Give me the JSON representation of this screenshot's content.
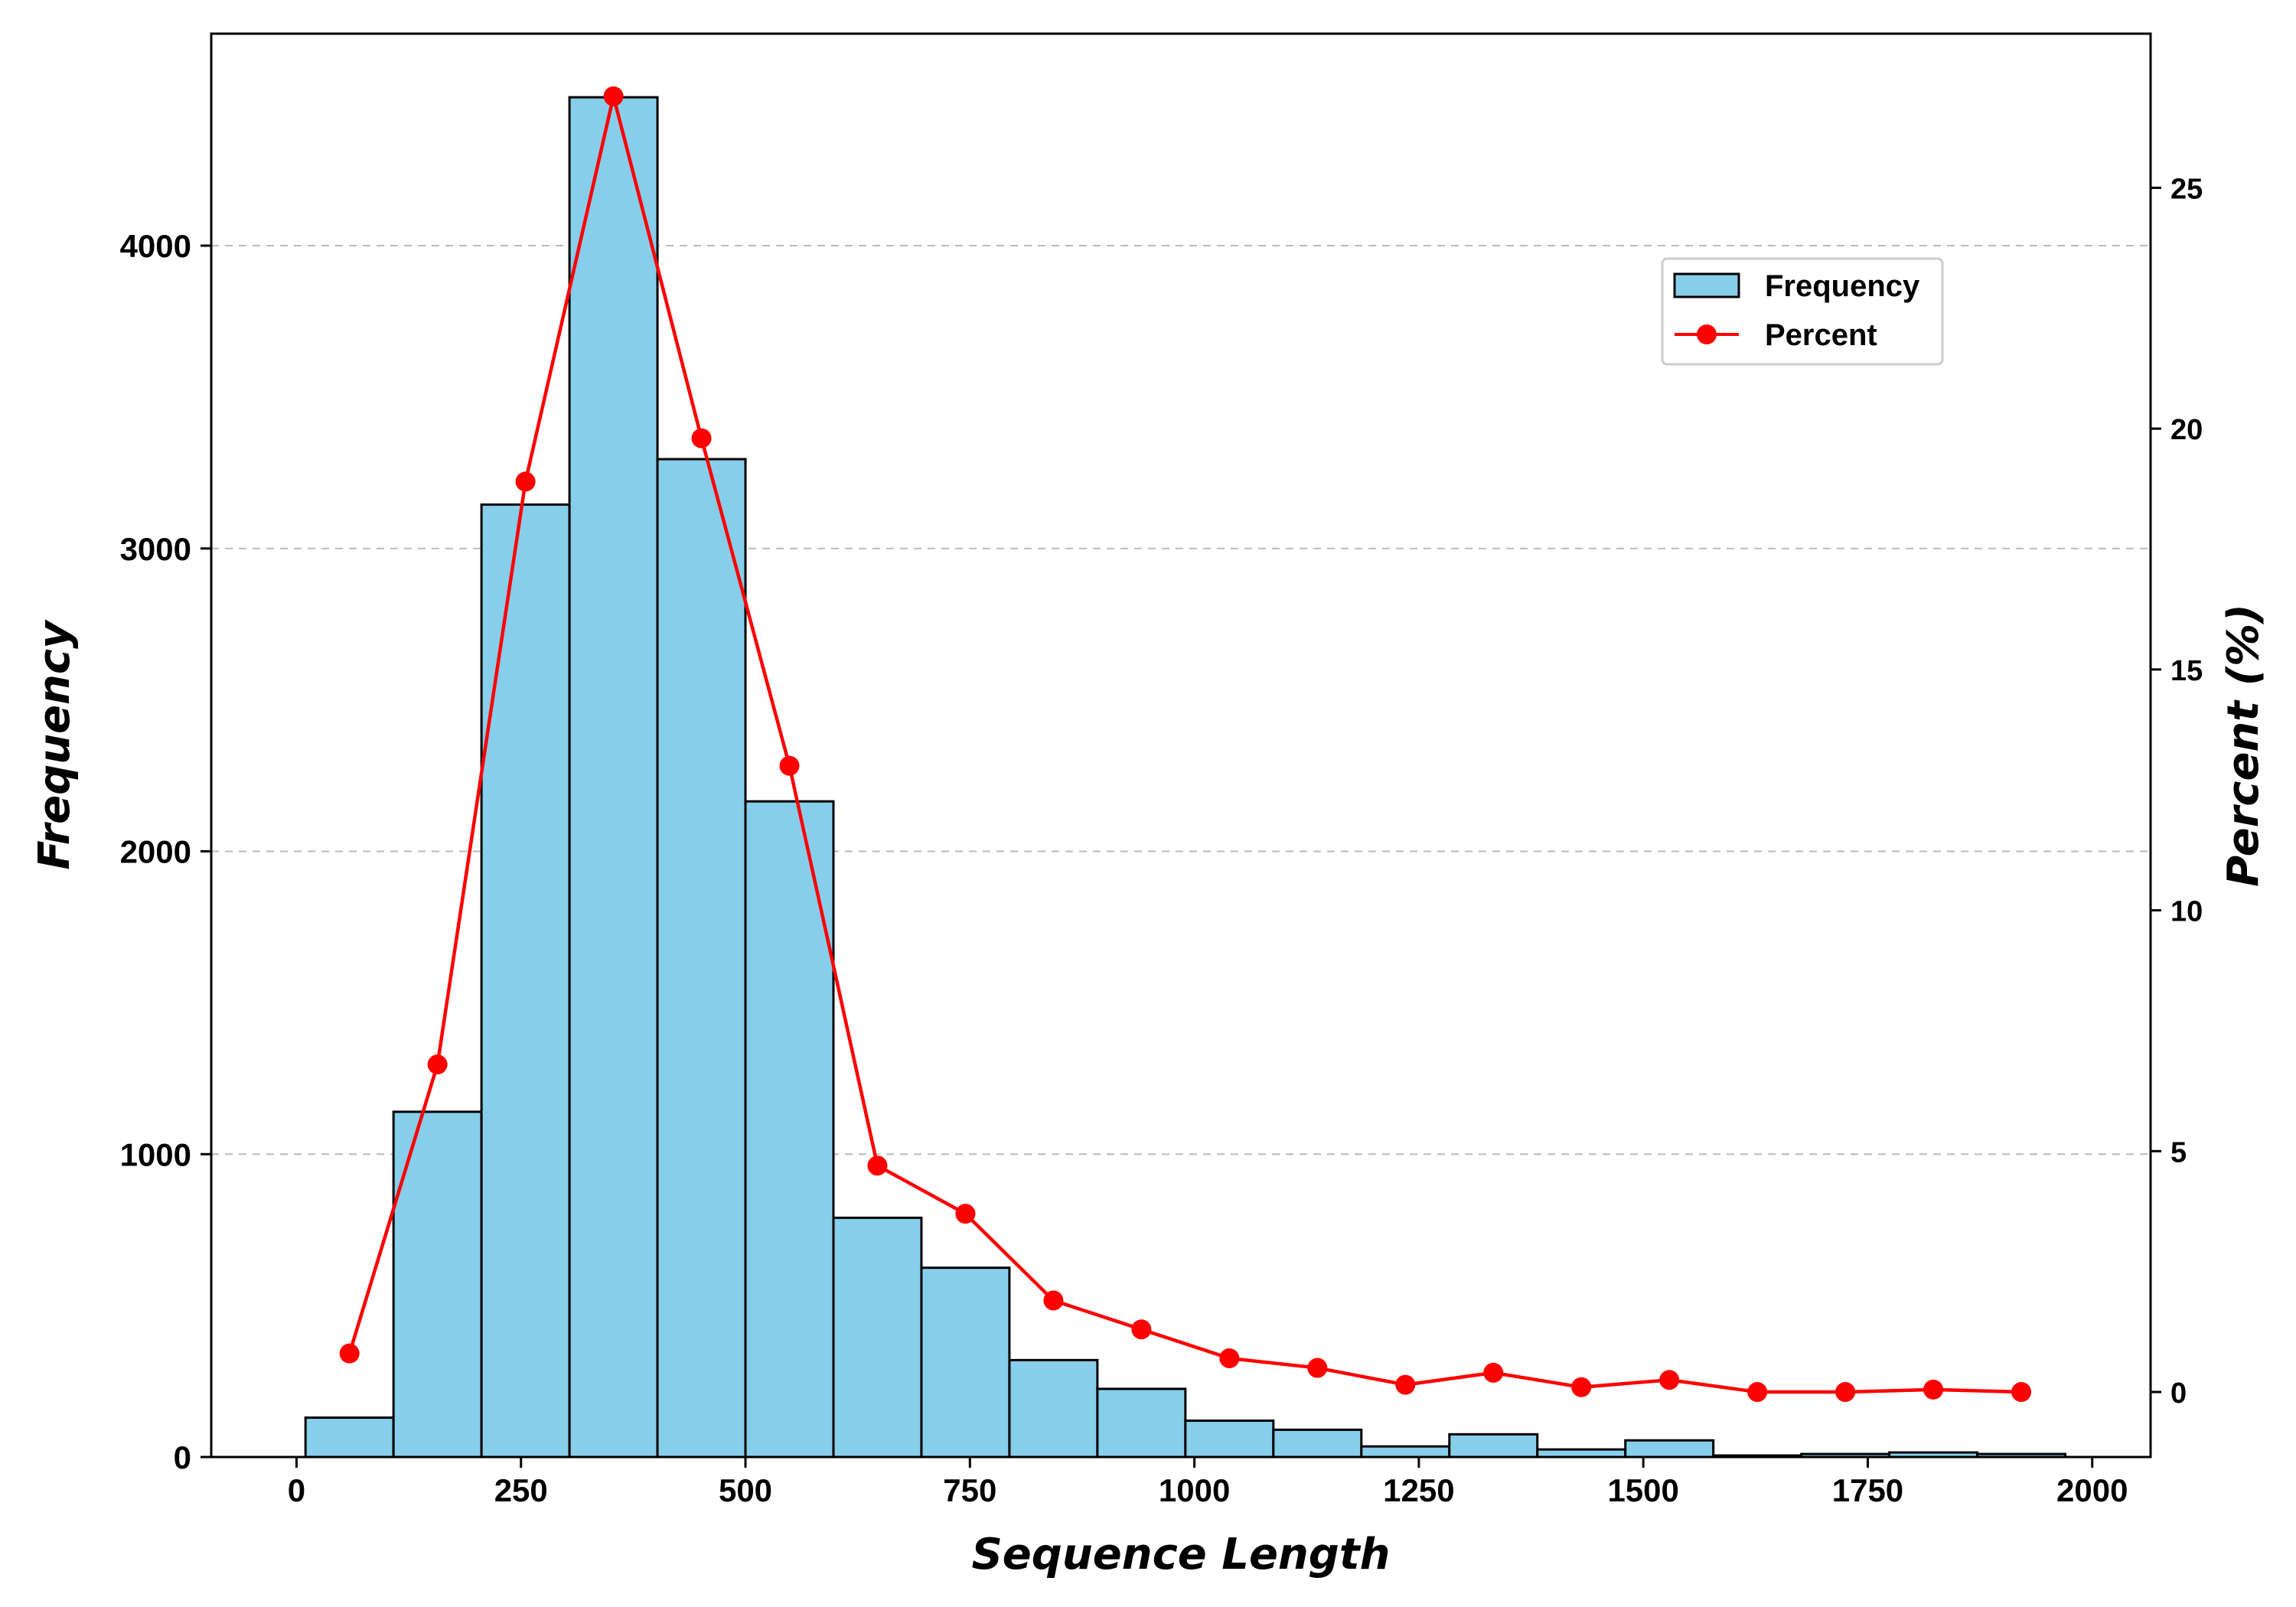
{
  "chart_data": {
    "type": "bar",
    "xlabel": "Sequence Length",
    "ylabel": "Frequency",
    "y2label": "Percent (%)",
    "xlim": [
      -95,
      2065
    ],
    "ylim": [
      0,
      4700
    ],
    "y2lim": [
      -1.35,
      28.2
    ],
    "xticks": [
      0,
      250,
      500,
      750,
      1000,
      1250,
      1500,
      1750,
      2000
    ],
    "yticks": [
      0,
      1000,
      2000,
      3000,
      4000
    ],
    "y2ticks": [
      0,
      5,
      10,
      15,
      20,
      25
    ],
    "grid": "y-dashed",
    "legend_position": "upper-right",
    "bin_edges": [
      10,
      108,
      206,
      304,
      402,
      500,
      598,
      696,
      794,
      892,
      990,
      1088,
      1186,
      1284,
      1382,
      1480,
      1578,
      1676,
      1774,
      1872,
      1970
    ],
    "series": [
      {
        "name": "Frequency",
        "type": "bar",
        "axis": "left",
        "color": "#87CEEB",
        "values": [
          130,
          1140,
          3145,
          4490,
          3295,
          2165,
          790,
          625,
          320,
          225,
          120,
          90,
          35,
          75,
          25,
          55,
          5,
          10,
          15,
          10
        ]
      },
      {
        "name": "Percent",
        "type": "line",
        "axis": "right",
        "color": "#FF0000",
        "x": [
          59,
          157,
          255,
          353,
          451,
          549,
          647,
          745,
          843,
          941,
          1039,
          1137,
          1235,
          1333,
          1431,
          1529,
          1627,
          1725,
          1823,
          1921
        ],
        "values": [
          0.8,
          6.8,
          18.9,
          26.9,
          19.8,
          13.0,
          4.7,
          3.7,
          1.9,
          1.3,
          0.7,
          0.5,
          0.15,
          0.4,
          0.1,
          0.25,
          0.0,
          0.0,
          0.05,
          0.0
        ]
      }
    ]
  }
}
